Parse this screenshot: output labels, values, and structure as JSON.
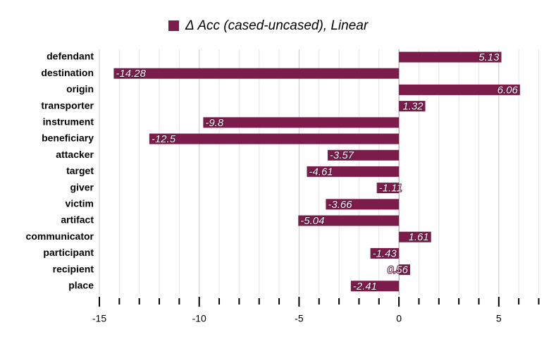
{
  "chart_data": {
    "type": "hbar",
    "categories": [
      "defendant",
      "destination",
      "origin",
      "transporter",
      "instrument",
      "beneficiary",
      "attacker",
      "target",
      "giver",
      "victim",
      "artifact",
      "communicator",
      "participant",
      "recipient",
      "place"
    ],
    "series": [
      {
        "name": "Δ Acc (cased-uncased), Linear",
        "color": "#7b1c4b",
        "values": [
          5.13,
          -14.28,
          6.06,
          1.32,
          -9.8,
          -12.5,
          -3.57,
          -4.61,
          -1.11,
          -3.66,
          -5.04,
          1.61,
          -1.43,
          0.56,
          -2.41
        ]
      }
    ],
    "xlim": [
      -15,
      7
    ],
    "xticks": [
      -15,
      -10,
      -5,
      0,
      5
    ],
    "xminor_ticks": [
      -14,
      -13,
      -12,
      -11,
      -9,
      -8,
      -7,
      -6,
      -4,
      -3,
      -2,
      -1,
      1,
      2,
      3,
      4,
      6,
      7
    ],
    "grid": true,
    "legend_position": "top"
  }
}
